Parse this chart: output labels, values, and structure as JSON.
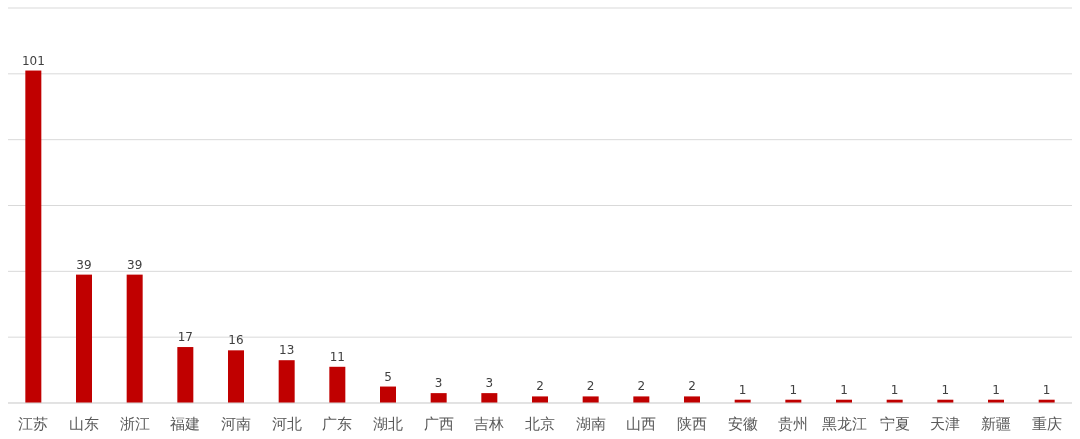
{
  "chart_data": {
    "type": "bar",
    "categories": [
      "江苏",
      "山东",
      "浙江",
      "福建",
      "河南",
      "河北",
      "广东",
      "湖北",
      "广西",
      "吉林",
      "北京",
      "湖南",
      "山西",
      "陕西",
      "安徽",
      "贵州",
      "黑龙江",
      "宁夏",
      "天津",
      "新疆",
      "重庆"
    ],
    "values": [
      101,
      39,
      39,
      17,
      16,
      13,
      11,
      5,
      3,
      3,
      2,
      2,
      2,
      2,
      1,
      1,
      1,
      1,
      1,
      1,
      1
    ],
    "color": "#c00000",
    "ylim": [
      0,
      120
    ],
    "yticks": [
      {
        "value": 0,
        "label": null
      },
      {
        "value": 20,
        "label": null
      },
      {
        "value": 40,
        "label": null
      },
      {
        "value": 60,
        "label": null
      },
      {
        "value": 80,
        "label": null
      },
      {
        "value": 100,
        "label": null
      },
      {
        "value": 120,
        "label": null
      }
    ],
    "tick_labels": "x",
    "grid": "y",
    "data_labels": true
  }
}
